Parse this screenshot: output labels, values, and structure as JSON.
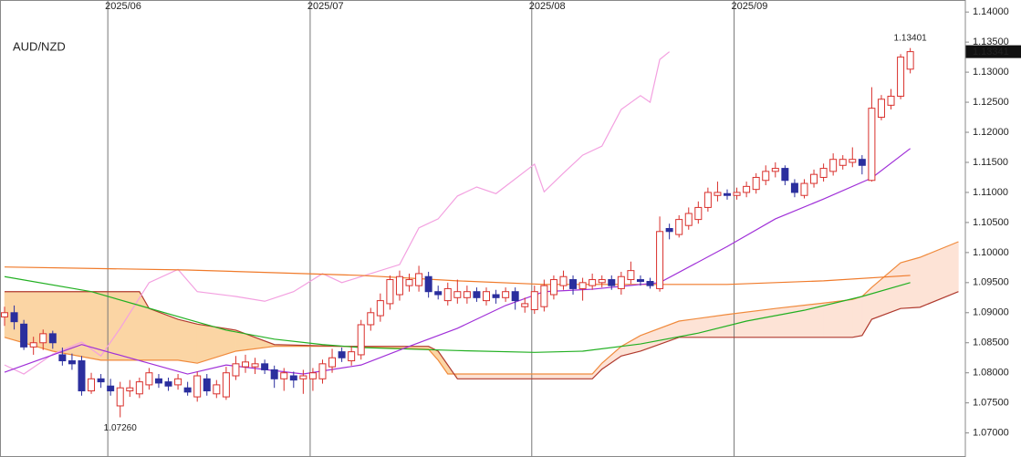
{
  "chart_data": {
    "type": "candlestick",
    "title": "AUD/NZD",
    "categories": [
      null,
      null,
      null,
      null,
      null,
      null,
      null,
      null,
      null,
      null,
      null,
      "2025/06",
      null,
      null,
      null,
      null,
      null,
      null,
      null,
      null,
      null,
      null,
      null,
      null,
      null,
      null,
      null,
      null,
      null,
      null,
      null,
      null,
      "2025/07",
      null,
      null,
      null,
      null,
      null,
      null,
      null,
      null,
      null,
      null,
      null,
      null,
      null,
      null,
      null,
      null,
      null,
      null,
      null,
      null,
      null,
      null,
      "2025/08",
      null,
      null,
      null,
      null,
      null,
      null,
      null,
      null,
      null,
      null,
      null,
      null,
      null,
      null,
      null,
      null,
      null,
      null,
      null,
      null,
      "2025/09",
      null,
      null,
      null,
      null,
      null,
      null,
      null,
      null,
      null,
      null,
      null,
      null,
      null,
      null,
      null,
      null,
      null,
      null
    ],
    "up_color": "#d9302c",
    "down_color": "#2b2f9e",
    "ohlc": [
      [
        1.0893,
        1.091,
        1.0878,
        1.09
      ],
      [
        1.09,
        1.0912,
        1.0872,
        1.0885
      ],
      [
        1.0881,
        1.0888,
        1.0838,
        1.0843
      ],
      [
        1.0843,
        1.086,
        1.083,
        1.085
      ],
      [
        1.085,
        1.0872,
        1.0838,
        1.0865
      ],
      [
        1.0865,
        1.087,
        1.084,
        1.085
      ],
      [
        1.083,
        1.0842,
        1.0812,
        1.082
      ],
      [
        1.082,
        1.0832,
        1.0805,
        1.0815
      ],
      [
        1.082,
        1.0828,
        1.0762,
        1.077
      ],
      [
        1.077,
        1.08,
        1.0765,
        1.079
      ],
      [
        1.079,
        1.0798,
        1.0775,
        1.0785
      ],
      [
        1.0778,
        1.079,
        1.0762,
        1.077
      ],
      [
        1.0745,
        1.0785,
        1.0726,
        1.0775
      ],
      [
        1.077,
        1.0788,
        1.076,
        1.0775
      ],
      [
        1.0765,
        1.0792,
        1.0758,
        1.0785
      ],
      [
        1.078,
        1.0808,
        1.0772,
        1.08
      ],
      [
        1.079,
        1.0798,
        1.0775,
        1.0783
      ],
      [
        1.0785,
        1.0792,
        1.077,
        1.0778
      ],
      [
        1.078,
        1.0798,
        1.0772,
        1.079
      ],
      [
        1.0775,
        1.0785,
        1.0762,
        1.0768
      ],
      [
        1.076,
        1.0802,
        1.0752,
        1.0795
      ],
      [
        1.079,
        1.0798,
        1.0762,
        1.077
      ],
      [
        1.0765,
        1.0788,
        1.0758,
        1.078
      ],
      [
        1.076,
        1.081,
        1.0755,
        1.08
      ],
      [
        1.0795,
        1.0828,
        1.0788,
        1.0815
      ],
      [
        1.081,
        1.083,
        1.08,
        1.0818
      ],
      [
        1.081,
        1.0825,
        1.0798,
        1.0815
      ],
      [
        1.0815,
        1.0822,
        1.0798,
        1.0805
      ],
      [
        1.0805,
        1.0812,
        1.0775,
        1.079
      ],
      [
        1.079,
        1.0808,
        1.077,
        1.08
      ],
      [
        1.0795,
        1.0802,
        1.0775,
        1.0788
      ],
      [
        1.079,
        1.0805,
        1.0765,
        1.0795
      ],
      [
        1.079,
        1.0808,
        1.077,
        1.08
      ],
      [
        1.079,
        1.0822,
        1.0782,
        1.0815
      ],
      [
        1.081,
        1.084,
        1.08,
        1.0825
      ],
      [
        1.0835,
        1.0842,
        1.0818,
        1.0825
      ],
      [
        1.082,
        1.0845,
        1.0812,
        1.0835
      ],
      [
        1.083,
        1.0888,
        1.0822,
        1.088
      ],
      [
        1.088,
        1.0908,
        1.087,
        1.09
      ],
      [
        1.0895,
        1.0932,
        1.0885,
        1.092
      ],
      [
        1.0915,
        1.0962,
        1.0905,
        1.0955
      ],
      [
        1.093,
        1.097,
        1.092,
        1.096
      ],
      [
        1.0945,
        1.0965,
        1.0935,
        1.0955
      ],
      [
        1.0945,
        1.0978,
        1.0935,
        1.0965
      ],
      [
        1.096,
        1.0968,
        1.0925,
        1.0935
      ],
      [
        1.0935,
        1.0945,
        1.0922,
        1.093
      ],
      [
        1.092,
        1.095,
        1.0912,
        1.094
      ],
      [
        1.0925,
        1.0955,
        1.0915,
        1.0935
      ],
      [
        1.0925,
        1.0945,
        1.0915,
        1.0935
      ],
      [
        1.0935,
        1.0942,
        1.0918,
        1.0925
      ],
      [
        1.092,
        1.0942,
        1.0912,
        1.0935
      ],
      [
        1.093,
        1.0938,
        1.0915,
        1.0925
      ],
      [
        1.0925,
        1.0942,
        1.0918,
        1.0935
      ],
      [
        1.0935,
        1.0942,
        1.0905,
        1.092
      ],
      [
        1.091,
        1.0925,
        1.09,
        1.0915
      ],
      [
        1.0905,
        1.0945,
        1.0898,
        1.0935
      ],
      [
        1.091,
        1.0955,
        1.0902,
        1.0945
      ],
      [
        1.093,
        1.0962,
        1.0922,
        1.0955
      ],
      [
        1.0945,
        1.097,
        1.0938,
        1.096
      ],
      [
        1.0955,
        1.0962,
        1.093,
        1.094
      ],
      [
        1.094,
        1.0958,
        1.092,
        1.095
      ],
      [
        1.0945,
        1.0965,
        1.0938,
        1.0955
      ],
      [
        1.095,
        1.0962,
        1.0942,
        1.0955
      ],
      [
        1.0955,
        1.0962,
        1.0938,
        1.0945
      ],
      [
        1.094,
        1.0968,
        1.093,
        1.096
      ],
      [
        1.0955,
        1.0985,
        1.0948,
        1.097
      ],
      [
        1.0955,
        1.0962,
        1.0945,
        1.0952
      ],
      [
        1.0952,
        1.0958,
        1.094,
        1.0945
      ],
      [
        1.094,
        1.106,
        1.0935,
        1.1035
      ],
      [
        1.104,
        1.1048,
        1.1022,
        1.1035
      ],
      [
        1.103,
        1.1062,
        1.1025,
        1.1055
      ],
      [
        1.1045,
        1.1075,
        1.1038,
        1.1065
      ],
      [
        1.1055,
        1.1085,
        1.1048,
        1.1075
      ],
      [
        1.1075,
        1.1108,
        1.1068,
        1.11
      ],
      [
        1.1095,
        1.1118,
        1.1085,
        1.11
      ],
      [
        1.1098,
        1.1105,
        1.1088,
        1.1095
      ],
      [
        1.1095,
        1.1108,
        1.1088,
        1.11
      ],
      [
        1.11,
        1.1118,
        1.1092,
        1.111
      ],
      [
        1.1105,
        1.1132,
        1.1098,
        1.1125
      ],
      [
        1.112,
        1.1145,
        1.1112,
        1.1135
      ],
      [
        1.1135,
        1.115,
        1.1125,
        1.114
      ],
      [
        1.114,
        1.1145,
        1.1112,
        1.112
      ],
      [
        1.1115,
        1.1122,
        1.1092,
        1.11
      ],
      [
        1.1095,
        1.1122,
        1.109,
        1.1115
      ],
      [
        1.1115,
        1.1138,
        1.1108,
        1.113
      ],
      [
        1.1125,
        1.1148,
        1.1118,
        1.114
      ],
      [
        1.1135,
        1.1165,
        1.1128,
        1.1155
      ],
      [
        1.1145,
        1.1162,
        1.1138,
        1.1155
      ],
      [
        1.115,
        1.1175,
        1.1142,
        1.1155
      ],
      [
        1.1155,
        1.1162,
        1.113,
        1.1145
      ],
      [
        1.112,
        1.1275,
        1.1118,
        1.124
      ],
      [
        1.1225,
        1.1262,
        1.122,
        1.1255
      ],
      [
        1.1245,
        1.1272,
        1.1238,
        1.126
      ],
      [
        1.126,
        1.133,
        1.1255,
        1.1325
      ],
      [
        1.1305,
        1.13401,
        1.1298,
        1.13341
      ]
    ],
    "cloud": {
      "x": [
        0,
        5,
        10,
        14,
        15,
        18,
        20,
        24,
        28,
        35,
        44,
        45,
        46,
        47,
        50,
        55,
        61,
        62,
        64,
        66,
        70,
        75,
        80,
        85,
        88,
        89,
        90,
        93,
        95,
        99
      ],
      "span_a": {
        "color": "#f08a3c",
        "values": [
          1.0859,
          1.0836,
          1.0821,
          1.0821,
          1.0821,
          1.0821,
          1.0816,
          1.0836,
          1.0844,
          1.0844,
          1.0839,
          1.0821,
          1.0798,
          1.0798,
          1.0798,
          1.0798,
          1.0798,
          1.0816,
          1.0844,
          1.0862,
          1.0886,
          1.0897,
          1.0907,
          1.0916,
          1.0922,
          1.0927,
          1.0942,
          1.0983,
          1.0992,
          1.1018
        ]
      },
      "span_b": {
        "color": "#b03a2e",
        "values": [
          1.0935,
          1.0935,
          1.0935,
          1.0935,
          1.0907,
          1.0889,
          1.0881,
          1.0871,
          1.0847,
          1.0844,
          1.0844,
          1.0836,
          1.0813,
          1.079,
          1.079,
          1.079,
          1.079,
          1.0806,
          1.0828,
          1.0836,
          1.0859,
          1.0859,
          1.0859,
          1.0859,
          1.0859,
          1.0862,
          1.0889,
          1.0907,
          1.0909,
          1.0935
        ]
      },
      "fill_a_above": "#fde3d6",
      "fill_b_above": "#fbd5a4"
    },
    "series": [
      {
        "color": "#f3a0e0",
        "x": [
          0,
          2,
          5,
          8,
          10,
          12,
          15,
          18,
          20,
          24,
          27,
          30,
          33,
          35,
          38,
          41,
          43,
          45,
          47,
          49,
          51,
          55,
          56,
          58,
          60,
          62,
          64,
          66,
          67,
          68,
          69
        ],
        "values": [
          1.0813,
          1.0798,
          1.0831,
          1.0851,
          1.0828,
          1.0874,
          1.095,
          1.0972,
          1.0935,
          1.0927,
          1.0919,
          1.0935,
          1.0965,
          1.095,
          1.0965,
          1.098,
          1.1041,
          1.1056,
          1.1094,
          1.1109,
          1.1098,
          1.1147,
          1.1101,
          1.1132,
          1.1162,
          1.1177,
          1.1238,
          1.1261,
          1.125,
          1.1321,
          1.1334
        ]
      },
      {
        "color": "#f07a2a",
        "x": [
          0,
          19,
          37,
          47,
          56,
          75,
          85,
          94
        ],
        "values": [
          1.0976,
          1.0971,
          1.0962,
          1.0953,
          1.0947,
          1.0947,
          1.0953,
          1.0962
        ]
      },
      {
        "color": "#22b022",
        "x": [
          0,
          9,
          14,
          19,
          23,
          28,
          33,
          37,
          47,
          55,
          60,
          66,
          72,
          77,
          83,
          89,
          94
        ],
        "values": [
          1.096,
          1.0935,
          1.0912,
          1.0889,
          1.0871,
          1.0856,
          1.0847,
          1.0842,
          1.0837,
          1.0834,
          1.0836,
          1.0848,
          1.0866,
          1.0886,
          1.0904,
          1.0927,
          1.095
        ]
      },
      {
        "color": "#a030d8",
        "x": [
          0,
          8,
          19,
          23,
          31,
          37,
          42,
          47,
          52,
          56,
          61,
          68,
          75,
          80,
          85,
          90,
          94
        ],
        "values": [
          1.0801,
          1.0847,
          1.0798,
          1.0813,
          1.0798,
          1.0813,
          1.0844,
          1.0874,
          1.0912,
          1.0935,
          1.0939,
          1.095,
          1.101,
          1.1056,
          1.1089,
          1.1124,
          1.1173
        ]
      }
    ],
    "high_label": {
      "value": 1.13401,
      "color": "#f08a3c"
    },
    "low_label": {
      "value": 1.0726,
      "label": "1.07260",
      "color": "#22a022"
    },
    "ylim": [
      1.066,
      1.142
    ],
    "yticks": [
      {
        "value": 1.14,
        "label": "1.14000"
      },
      {
        "value": 1.135,
        "label": "1.13500"
      },
      {
        "value": 1.13,
        "label": "1.13000"
      },
      {
        "value": 1.125,
        "label": "1.12500"
      },
      {
        "value": 1.12,
        "label": "1.12000"
      },
      {
        "value": 1.115,
        "label": "1.11500"
      },
      {
        "value": 1.11,
        "label": "1.11000"
      },
      {
        "value": 1.105,
        "label": "1.10500"
      },
      {
        "value": 1.1,
        "label": "1.10000"
      },
      {
        "value": 1.095,
        "label": "1.09500"
      },
      {
        "value": 1.09,
        "label": "1.09000"
      },
      {
        "value": 1.085,
        "label": "1.08500"
      },
      {
        "value": 1.08,
        "label": "1.08000"
      },
      {
        "value": 1.075,
        "label": "1.07500"
      },
      {
        "value": 1.07,
        "label": "1.07000"
      }
    ]
  }
}
